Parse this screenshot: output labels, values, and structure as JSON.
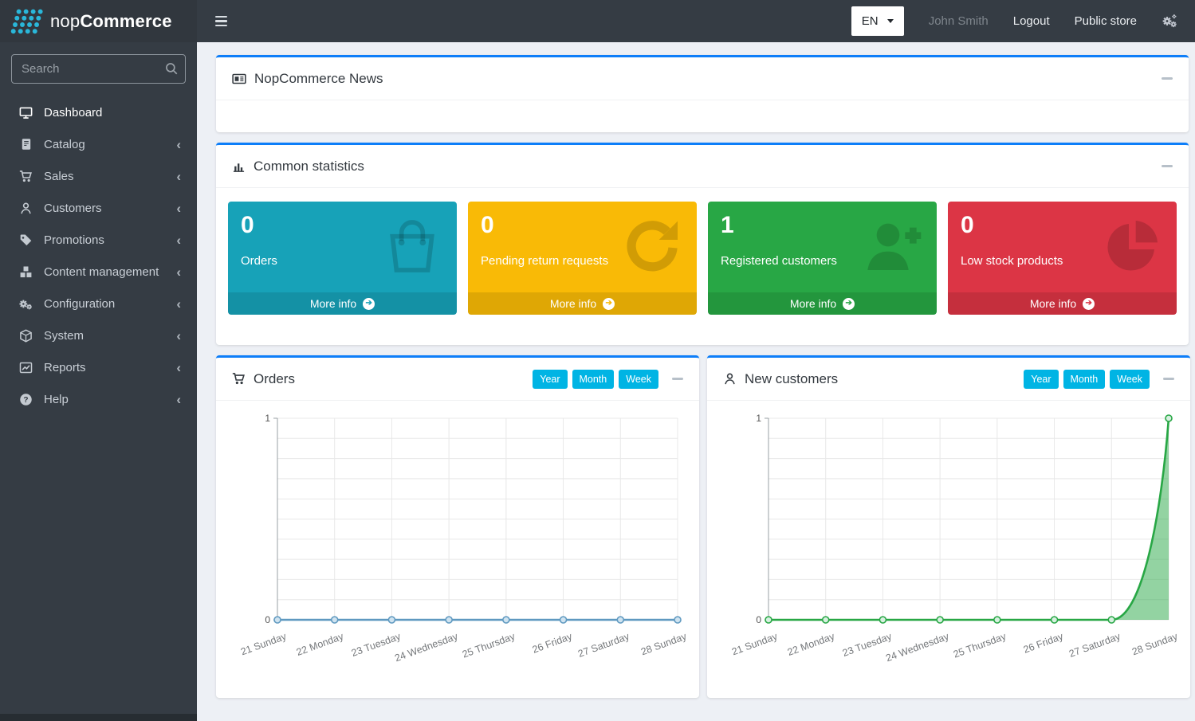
{
  "topbar": {
    "language": "EN",
    "user_name": "John Smith",
    "logout": "Logout",
    "public_store": "Public store"
  },
  "sidebar": {
    "brand": {
      "normal": "nop",
      "bold": "Commerce"
    },
    "search_placeholder": "Search",
    "items": [
      {
        "label": "Dashboard",
        "icon": "monitor-icon",
        "active": true,
        "has_children": false
      },
      {
        "label": "Catalog",
        "icon": "book-icon",
        "active": false,
        "has_children": true
      },
      {
        "label": "Sales",
        "icon": "cart-icon",
        "active": false,
        "has_children": true
      },
      {
        "label": "Customers",
        "icon": "user-icon",
        "active": false,
        "has_children": true
      },
      {
        "label": "Promotions",
        "icon": "tag-icon",
        "active": false,
        "has_children": true
      },
      {
        "label": "Content management",
        "icon": "cubes-icon",
        "active": false,
        "has_children": true
      },
      {
        "label": "Configuration",
        "icon": "gears-icon",
        "active": false,
        "has_children": true
      },
      {
        "label": "System",
        "icon": "box-icon",
        "active": false,
        "has_children": true
      },
      {
        "label": "Reports",
        "icon": "chart-line-icon",
        "active": false,
        "has_children": true
      },
      {
        "label": "Help",
        "icon": "question-icon",
        "active": false,
        "has_children": true
      }
    ]
  },
  "page": {
    "title": "Dashboard"
  },
  "panels": {
    "news": {
      "title": "NopCommerce News",
      "icon": "newspaper-icon"
    },
    "stats": {
      "title": "Common statistics",
      "icon": "bar-chart-icon"
    }
  },
  "info_boxes": [
    {
      "value": "0",
      "label": "Orders",
      "icon": "shopping-bag-icon",
      "bg": "#17a2b8",
      "more_info": "More info"
    },
    {
      "value": "0",
      "label": "Pending return requests",
      "icon": "refresh-icon",
      "bg": "#f9ba06",
      "more_info": "More info"
    },
    {
      "value": "1",
      "label": "Registered customers",
      "icon": "user-plus-icon",
      "bg": "#28a745",
      "more_info": "More info"
    },
    {
      "value": "0",
      "label": "Low stock products",
      "icon": "pie-chart-icon",
      "bg": "#dc3545",
      "more_info": "More info"
    }
  ],
  "chart_data": [
    {
      "type": "line",
      "title": "Orders",
      "icon": "cart-icon",
      "range_buttons": [
        "Year",
        "Month",
        "Week"
      ],
      "categories": [
        "21 Sunday",
        "22 Monday",
        "23 Tuesday",
        "24 Wednesday",
        "25 Thursday",
        "26 Friday",
        "27 Saturday",
        "28 Sunday"
      ],
      "values": [
        0,
        0,
        0,
        0,
        0,
        0,
        0,
        0
      ],
      "ylim": [
        0,
        1
      ],
      "yticks": [
        0,
        1
      ],
      "grid": true,
      "legend": "none",
      "line_color": "#5f99c0",
      "marker_fill": "#cfe3f0",
      "fill": false,
      "fill_color": "none"
    },
    {
      "type": "line",
      "title": "New customers",
      "icon": "user-icon",
      "range_buttons": [
        "Year",
        "Month",
        "Week"
      ],
      "categories": [
        "21 Sunday",
        "22 Monday",
        "23 Tuesday",
        "24 Wednesday",
        "25 Thursday",
        "26 Friday",
        "27 Saturday",
        "28 Sunday"
      ],
      "values": [
        0,
        0,
        0,
        0,
        0,
        0,
        0,
        1
      ],
      "ylim": [
        0,
        1
      ],
      "yticks": [
        0,
        1
      ],
      "grid": true,
      "legend": "none",
      "line_color": "#28a745",
      "marker_fill": "#d7f0e0",
      "fill": true,
      "fill_color": "rgba(40,167,69,0.5)"
    }
  ],
  "colors": {
    "dark_chrome": "#353c44",
    "card_top_border": "#0d7ef9",
    "range_button": "#00b4e4",
    "content_bg": "#edf0f5",
    "logo_accent": "#2ab7d9"
  }
}
